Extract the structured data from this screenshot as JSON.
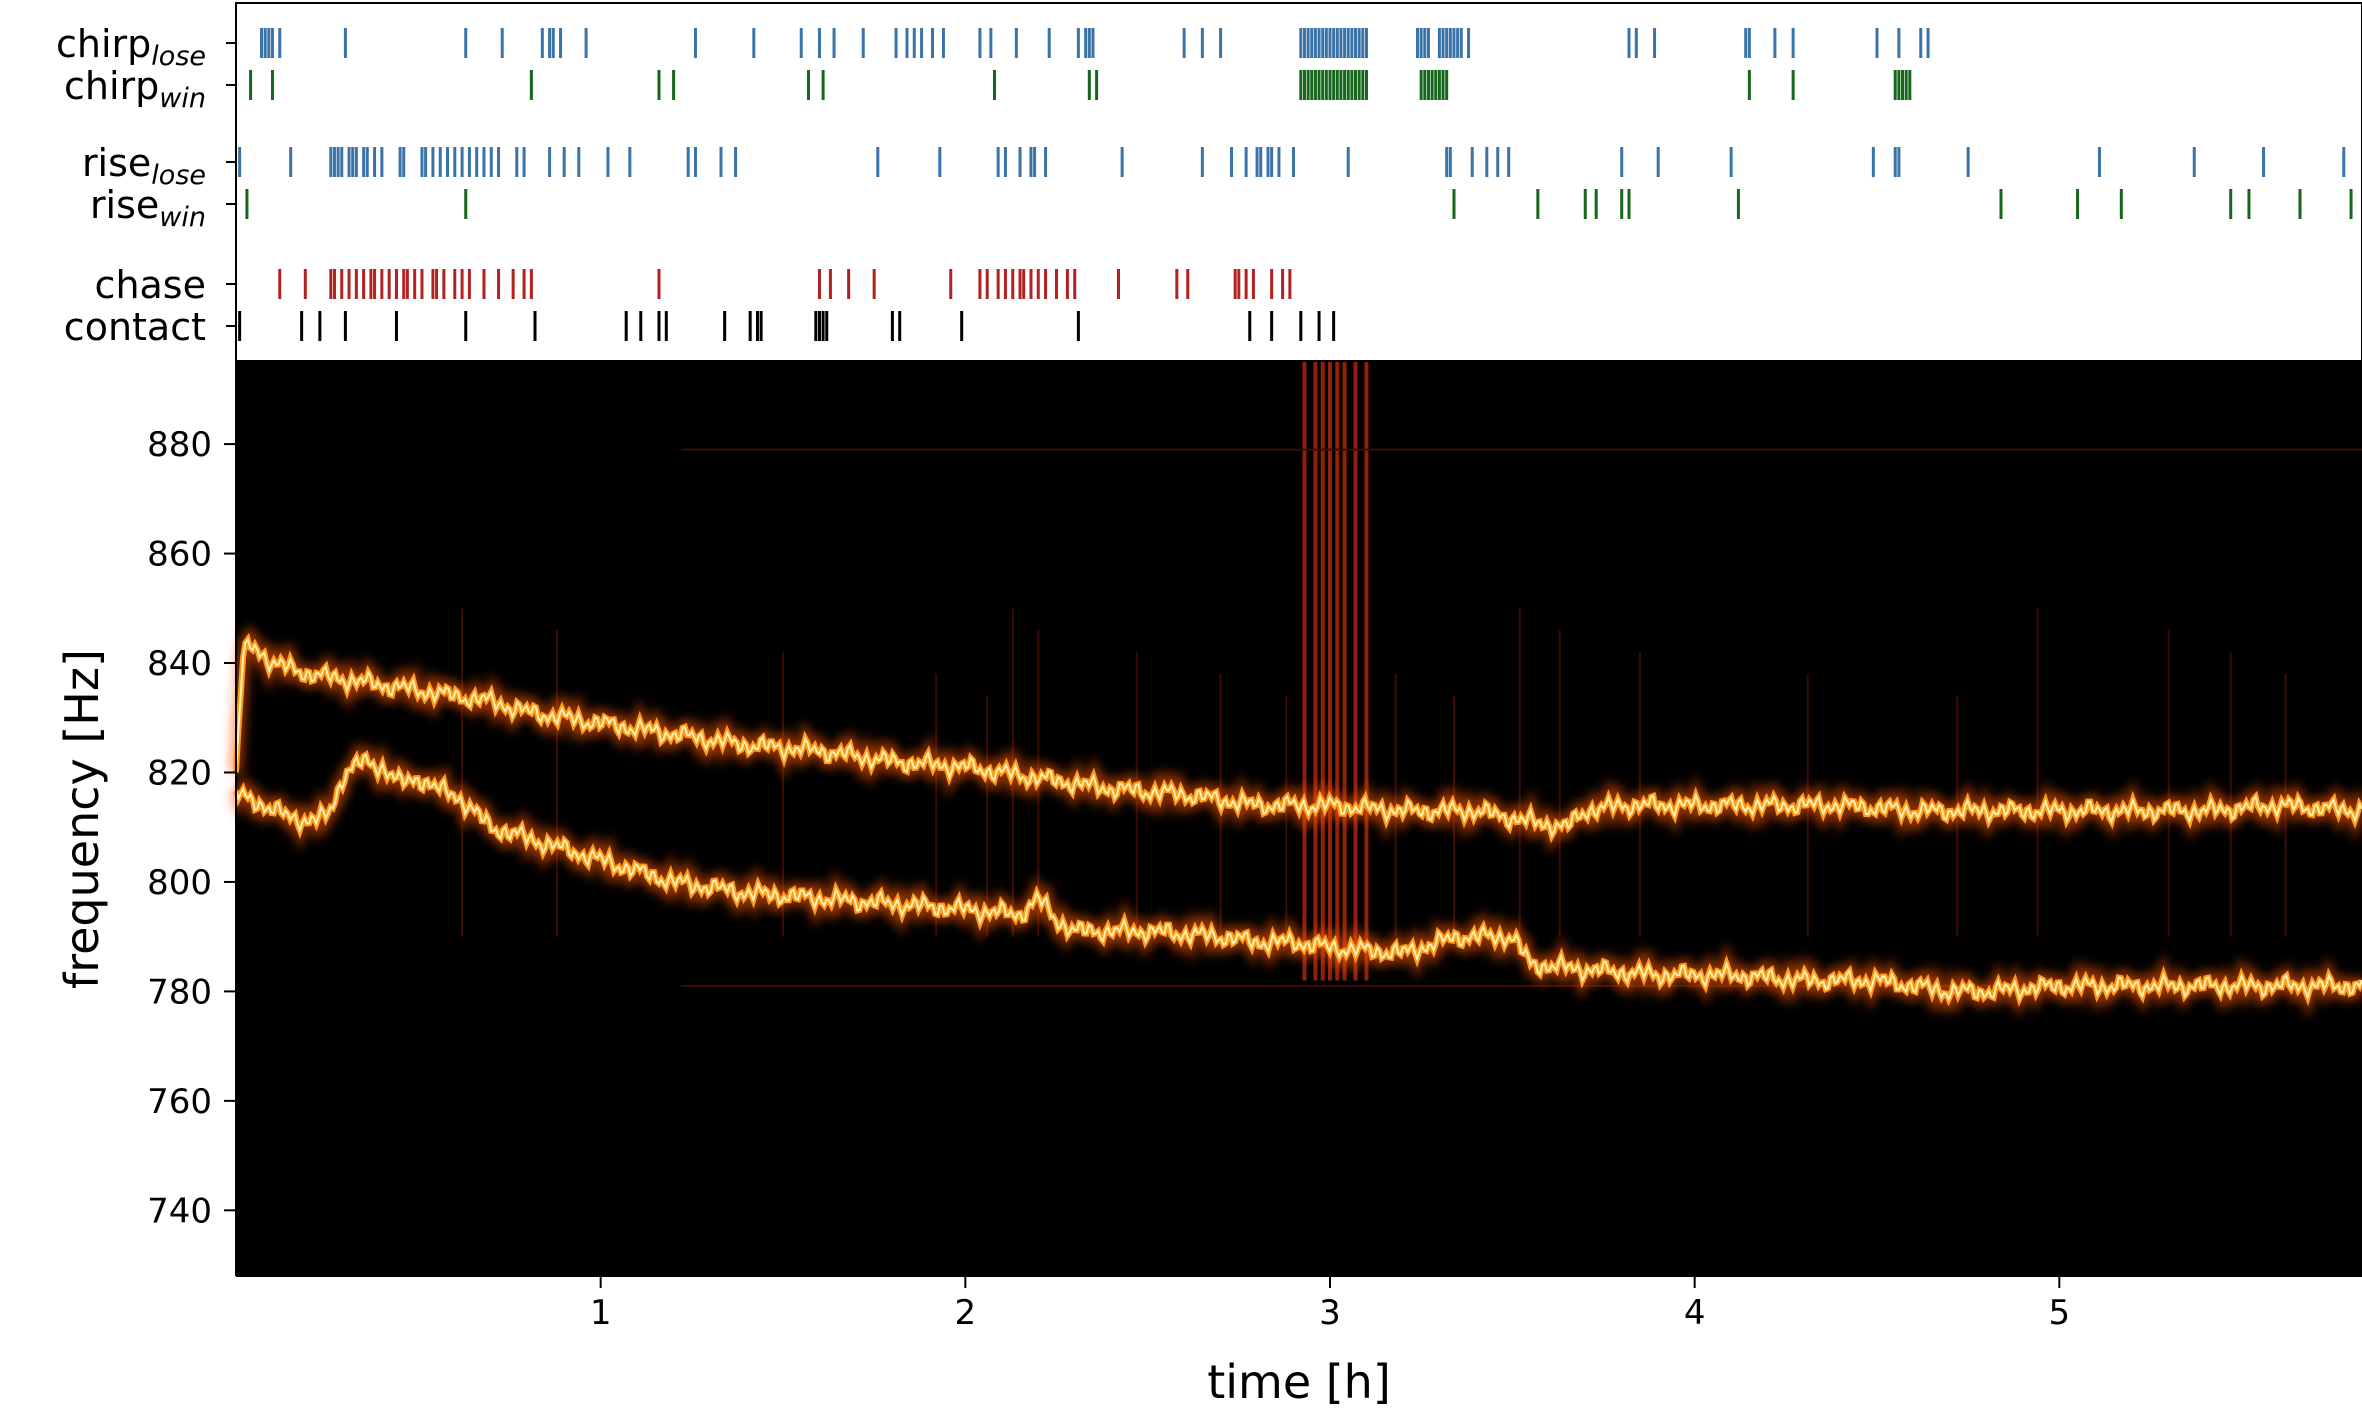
{
  "chart_data": [
    {
      "type": "event-raster",
      "rows": [
        {
          "name": "chirp",
          "subscript": "lose",
          "color": "#3a73a8",
          "events": [
            0.07,
            0.08,
            0.09,
            0.1,
            0.12,
            0.3,
            0.63,
            0.73,
            0.84,
            0.86,
            0.87,
            0.89,
            0.96,
            1.26,
            1.42,
            1.55,
            1.6,
            1.64,
            1.72,
            1.81,
            1.84,
            1.86,
            1.88,
            1.91,
            1.94,
            2.04,
            2.07,
            2.14,
            2.23,
            2.31,
            2.33,
            2.34,
            2.35,
            2.6,
            2.65,
            2.7,
            2.92,
            2.93,
            2.94,
            2.95,
            2.96,
            2.97,
            2.98,
            2.99,
            3.0,
            3.01,
            3.02,
            3.03,
            3.04,
            3.05,
            3.06,
            3.07,
            3.08,
            3.09,
            3.1,
            3.24,
            3.25,
            3.26,
            3.27,
            3.3,
            3.31,
            3.32,
            3.33,
            3.34,
            3.35,
            3.36,
            3.38,
            3.82,
            3.84,
            3.89,
            4.14,
            4.15,
            4.22,
            4.27,
            4.5,
            4.56,
            4.62,
            4.64
          ]
        },
        {
          "name": "chirp",
          "subscript": "win",
          "color": "#16661c",
          "events": [
            0.04,
            0.1,
            0.81,
            1.16,
            1.2,
            1.57,
            1.61,
            2.08,
            2.34,
            2.36,
            2.92,
            2.93,
            2.94,
            2.95,
            2.96,
            2.97,
            2.98,
            2.99,
            3.0,
            3.01,
            3.02,
            3.03,
            3.04,
            3.05,
            3.06,
            3.07,
            3.08,
            3.09,
            3.1,
            3.25,
            3.26,
            3.27,
            3.28,
            3.29,
            3.3,
            3.31,
            3.32,
            4.15,
            4.27,
            4.55,
            4.56,
            4.57,
            4.58,
            4.59
          ]
        },
        {
          "name": "rise",
          "subscript": "lose",
          "color": "#3a73a8",
          "events": [
            0.01,
            0.15,
            0.26,
            0.27,
            0.28,
            0.29,
            0.31,
            0.32,
            0.33,
            0.35,
            0.36,
            0.38,
            0.4,
            0.45,
            0.46,
            0.51,
            0.52,
            0.54,
            0.56,
            0.58,
            0.6,
            0.62,
            0.64,
            0.66,
            0.68,
            0.7,
            0.72,
            0.77,
            0.79,
            0.86,
            0.9,
            0.94,
            1.02,
            1.08,
            1.24,
            1.26,
            1.33,
            1.37,
            1.76,
            1.93,
            2.09,
            2.11,
            2.15,
            2.18,
            2.19,
            2.22,
            2.43,
            2.65,
            2.73,
            2.77,
            2.8,
            2.81,
            2.83,
            2.84,
            2.86,
            2.9,
            3.05,
            3.32,
            3.33,
            3.39,
            3.43,
            3.46,
            3.49,
            3.8,
            3.9,
            4.1,
            4.49,
            4.55,
            4.56,
            4.75,
            5.11,
            5.37,
            5.56,
            5.78
          ]
        },
        {
          "name": "rise",
          "subscript": "win",
          "color": "#16661c",
          "events": [
            0.03,
            0.63,
            3.34,
            3.57,
            3.7,
            3.73,
            3.8,
            3.82,
            4.12,
            4.84,
            5.05,
            5.17,
            5.47,
            5.52,
            5.66,
            5.8
          ]
        },
        {
          "name": "chase",
          "subscript": "",
          "color": "#b22222",
          "events": [
            0.12,
            0.19,
            0.26,
            0.27,
            0.29,
            0.31,
            0.33,
            0.35,
            0.37,
            0.38,
            0.4,
            0.42,
            0.44,
            0.46,
            0.47,
            0.49,
            0.51,
            0.54,
            0.55,
            0.57,
            0.6,
            0.62,
            0.64,
            0.68,
            0.72,
            0.76,
            0.79,
            0.81,
            1.16,
            1.6,
            1.63,
            1.68,
            1.75,
            1.96,
            2.04,
            2.06,
            2.09,
            2.11,
            2.13,
            2.15,
            2.16,
            2.18,
            2.2,
            2.22,
            2.25,
            2.28,
            2.3,
            2.42,
            2.58,
            2.61,
            2.74,
            2.75,
            2.77,
            2.79,
            2.84,
            2.87,
            2.89
          ]
        },
        {
          "name": "contact",
          "subscript": "",
          "color": "#000000",
          "events": [
            0.01,
            0.18,
            0.23,
            0.3,
            0.44,
            0.63,
            0.82,
            1.07,
            1.11,
            1.16,
            1.18,
            1.34,
            1.41,
            1.43,
            1.44,
            1.59,
            1.6,
            1.61,
            1.62,
            1.8,
            1.82,
            1.99,
            2.31,
            2.78,
            2.84,
            2.92,
            2.97,
            3.01
          ]
        }
      ]
    },
    {
      "type": "heatmap",
      "xlabel": "time [h]",
      "ylabel": "frequency [Hz]",
      "xlim": [
        0,
        5.83
      ],
      "ylim": [
        728,
        895
      ],
      "xticks": [
        1,
        2,
        3,
        4,
        5
      ],
      "yticks": [
        740,
        760,
        780,
        800,
        820,
        840,
        860,
        880
      ],
      "colormap": "afmhot",
      "series": [
        {
          "x": [
            0.0,
            0.02,
            0.05,
            0.1,
            0.2,
            0.3,
            0.4,
            0.5,
            0.6,
            0.7,
            0.8,
            0.9,
            1.0,
            1.2,
            1.4,
            1.6,
            1.8,
            2.0,
            2.2,
            2.4,
            2.6,
            2.8,
            3.0,
            3.2,
            3.4,
            3.55,
            3.65,
            3.7,
            3.8,
            4.0,
            4.2,
            4.4,
            4.6,
            4.8,
            5.0,
            5.2,
            5.4,
            5.6,
            5.83
          ],
          "y": [
            820,
            842,
            843,
            840,
            838,
            837,
            836,
            835,
            834,
            833,
            831,
            830,
            829,
            827,
            825,
            824,
            822,
            821,
            819,
            817,
            816,
            814,
            814,
            813,
            813,
            811,
            810,
            813,
            814,
            814,
            814,
            814,
            813,
            813,
            813,
            813,
            813,
            814,
            813
          ]
        },
        {
          "x": [
            0.0,
            0.05,
            0.1,
            0.15,
            0.2,
            0.25,
            0.3,
            0.35,
            0.4,
            0.45,
            0.5,
            0.55,
            0.6,
            0.65,
            0.7,
            0.8,
            0.9,
            1.0,
            1.1,
            1.2,
            1.4,
            1.6,
            1.8,
            2.0,
            2.15,
            2.2,
            2.25,
            2.3,
            2.5,
            2.7,
            2.8,
            2.9,
            3.0,
            3.2,
            3.35,
            3.45,
            3.5,
            3.55,
            3.7,
            3.9,
            4.1,
            4.3,
            4.5,
            4.6,
            4.7,
            4.8,
            5.0,
            5.2,
            5.4,
            5.6,
            5.83
          ],
          "y": [
            816,
            815,
            813,
            812,
            811,
            812,
            820,
            822,
            821,
            818,
            819,
            817,
            816,
            813,
            810,
            808,
            806,
            804,
            802,
            800,
            798,
            797,
            796,
            795,
            794,
            797,
            793,
            791,
            791,
            790,
            789,
            789,
            788,
            787,
            790,
            790,
            790,
            785,
            784,
            783,
            783,
            782,
            782,
            781,
            780,
            780,
            781,
            781,
            781,
            781,
            781
          ]
        }
      ]
    }
  ]
}
